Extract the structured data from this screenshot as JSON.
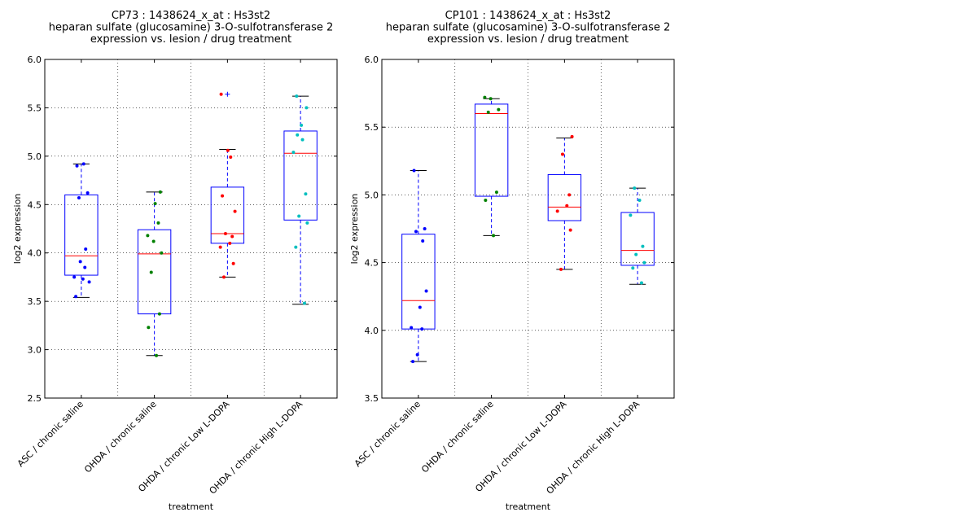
{
  "chart_data": [
    {
      "type": "box",
      "title_lines": [
        "CP73 : 1438624_x_at : Hs3st2",
        "heparan sulfate (glucosamine) 3-O-sulfotransferase 2",
        "expression vs. lesion / drug treatment"
      ],
      "xlabel": "treatment",
      "ylabel": "log2 expression",
      "ylim": [
        2.5,
        6.0
      ],
      "yticks": [
        "2.5",
        "3.0",
        "3.5",
        "4.0",
        "4.5",
        "5.0",
        "5.5",
        "6.0"
      ],
      "grid": true,
      "categories": [
        "ASC / chronic saline",
        "OHDA / chronic saline",
        "OHDA / chronic Low L-DOPA",
        "OHDA / chronic High L-DOPA"
      ],
      "boxes": [
        {
          "q1": 3.77,
          "median": 3.97,
          "q3": 4.6,
          "whisker_low": 3.54,
          "whisker_high": 4.92,
          "outliers": []
        },
        {
          "q1": 3.37,
          "median": 3.99,
          "q3": 4.24,
          "whisker_low": 2.94,
          "whisker_high": 4.63,
          "outliers": []
        },
        {
          "q1": 4.1,
          "median": 4.2,
          "q3": 4.68,
          "whisker_low": 3.75,
          "whisker_high": 5.07,
          "outliers": [
            5.64
          ]
        },
        {
          "q1": 4.34,
          "median": 5.03,
          "q3": 5.26,
          "whisker_low": 3.47,
          "whisker_high": 5.62,
          "outliers": []
        }
      ],
      "points": [
        {
          "color": "#0000ff",
          "values": [
            3.55,
            3.91,
            3.85,
            3.75,
            3.73,
            3.7,
            4.04,
            4.57,
            4.62,
            4.9,
            4.92
          ]
        },
        {
          "color": "#008000",
          "values": [
            2.94,
            3.23,
            3.37,
            3.8,
            4.0,
            4.12,
            4.18,
            4.31,
            4.51,
            4.63
          ]
        },
        {
          "color": "#ff0000",
          "values": [
            3.75,
            3.89,
            4.06,
            4.1,
            4.17,
            4.2,
            4.43,
            4.59,
            4.99,
            5.06,
            5.64
          ]
        },
        {
          "color": "#00bfbf",
          "values": [
            3.48,
            4.06,
            4.31,
            4.38,
            4.61,
            5.04,
            5.17,
            5.22,
            5.32,
            5.5,
            5.62
          ]
        }
      ],
      "colors": {
        "box": "#0000ff",
        "median": "#ff0000",
        "whisker": "#000000"
      }
    },
    {
      "type": "box",
      "title_lines": [
        "CP101 : 1438624_x_at : Hs3st2",
        "heparan sulfate (glucosamine) 3-O-sulfotransferase 2",
        "expression vs. lesion / drug treatment"
      ],
      "xlabel": "treatment",
      "ylabel": "log2 expression",
      "ylim": [
        3.5,
        6.0
      ],
      "yticks": [
        "3.5",
        "4.0",
        "4.5",
        "5.0",
        "5.5",
        "6.0"
      ],
      "grid": true,
      "categories": [
        "ASC / chronic saline",
        "OHDA / chronic saline",
        "OHDA / chronic Low L-DOPA",
        "OHDA / chronic High L-DOPA"
      ],
      "boxes": [
        {
          "q1": 4.01,
          "median": 4.22,
          "q3": 4.71,
          "whisker_low": 3.77,
          "whisker_high": 5.18,
          "outliers": []
        },
        {
          "q1": 4.99,
          "median": 5.6,
          "q3": 5.67,
          "whisker_low": 4.7,
          "whisker_high": 5.71,
          "outliers": []
        },
        {
          "q1": 4.81,
          "median": 4.91,
          "q3": 5.15,
          "whisker_low": 4.45,
          "whisker_high": 5.42,
          "outliers": []
        },
        {
          "q1": 4.48,
          "median": 4.59,
          "q3": 4.87,
          "whisker_low": 4.34,
          "whisker_high": 5.05,
          "outliers": []
        }
      ],
      "points": [
        {
          "color": "#0000ff",
          "values": [
            3.77,
            3.82,
            4.01,
            4.02,
            4.17,
            4.29,
            4.66,
            4.73,
            4.75,
            5.18
          ]
        },
        {
          "color": "#008000",
          "values": [
            4.7,
            4.96,
            5.02,
            5.61,
            5.63,
            5.71,
            5.72
          ]
        },
        {
          "color": "#ff0000",
          "values": [
            4.45,
            4.74,
            4.88,
            4.92,
            5.0,
            5.3,
            5.43
          ]
        },
        {
          "color": "#00bfbf",
          "values": [
            4.35,
            4.46,
            4.5,
            4.56,
            4.62,
            4.85,
            4.96,
            5.05
          ]
        }
      ],
      "colors": {
        "box": "#0000ff",
        "median": "#ff0000",
        "whisker": "#000000"
      }
    }
  ]
}
